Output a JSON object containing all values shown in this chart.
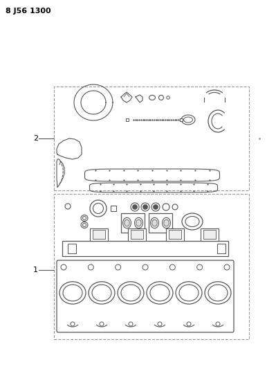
{
  "title": "8 J56 1300",
  "background_color": "#ffffff",
  "fig_width": 3.99,
  "fig_height": 5.33,
  "dpi": 100,
  "label1": "1",
  "label2": "2",
  "line_color": "#555555",
  "dash_box_color": "#999999"
}
